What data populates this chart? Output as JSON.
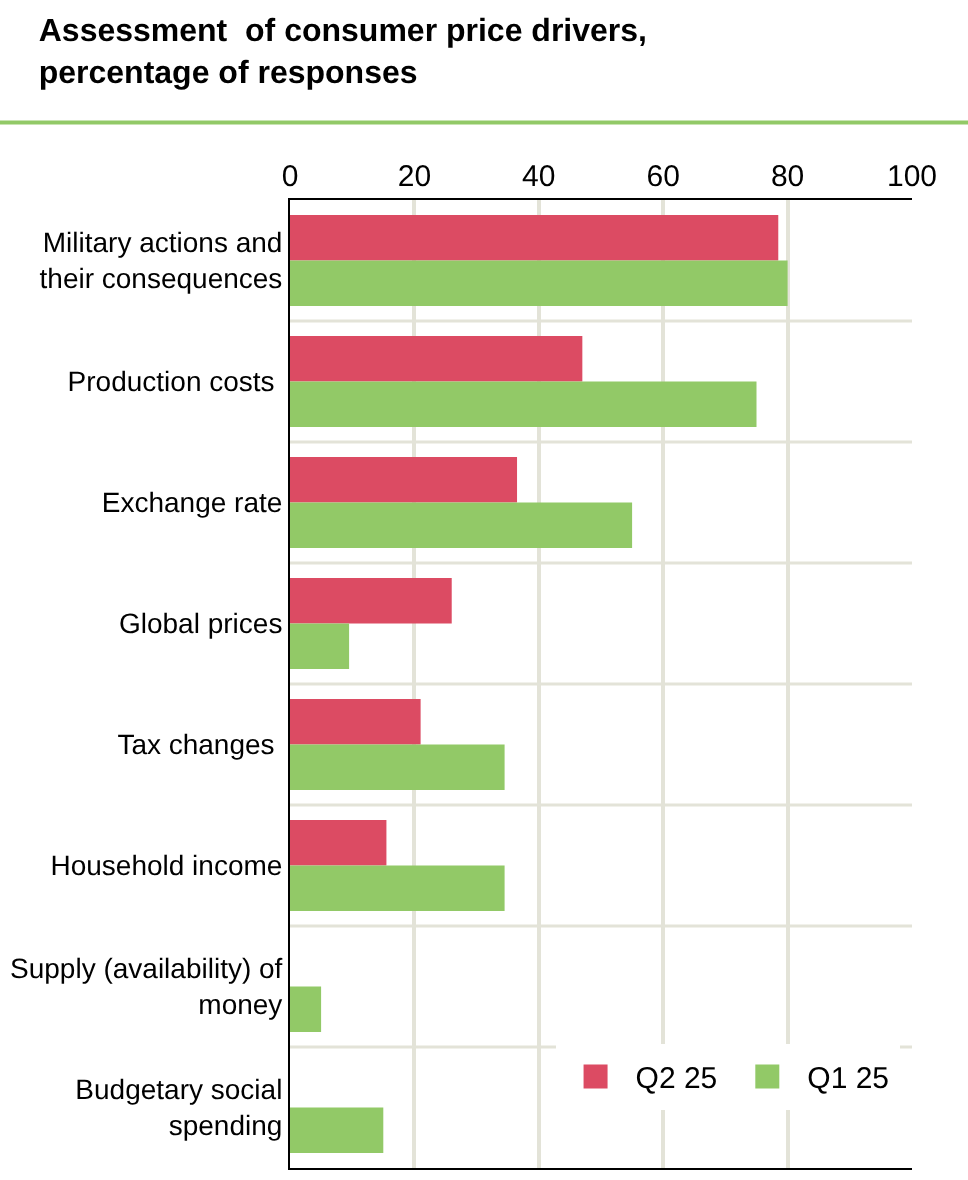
{
  "chart_data": {
    "type": "bar",
    "orientation": "horizontal",
    "title": "Assessment  of consumer price drivers,\npercentage of responses",
    "categories": [
      "Military actions and\ntheir consequences",
      "Production costs ",
      "Exchange rate",
      "Global prices",
      "Tax changes ",
      "Household income",
      "Supply (availability) of\nmoney",
      "Budgetary social\nspending"
    ],
    "series": [
      {
        "name": "Q2 25",
        "color": "#dc4b63",
        "values": [
          78.5,
          47,
          36.5,
          26,
          21,
          15.5,
          0,
          0
        ]
      },
      {
        "name": "Q1 25",
        "color": "#92c967",
        "values": [
          80,
          75,
          55,
          9.5,
          34.5,
          34.5,
          5,
          15
        ]
      }
    ],
    "xlim": [
      0,
      100
    ],
    "xticks": [
      0,
      20,
      40,
      60,
      80,
      100
    ],
    "grid": true,
    "legend": "bottom right"
  }
}
